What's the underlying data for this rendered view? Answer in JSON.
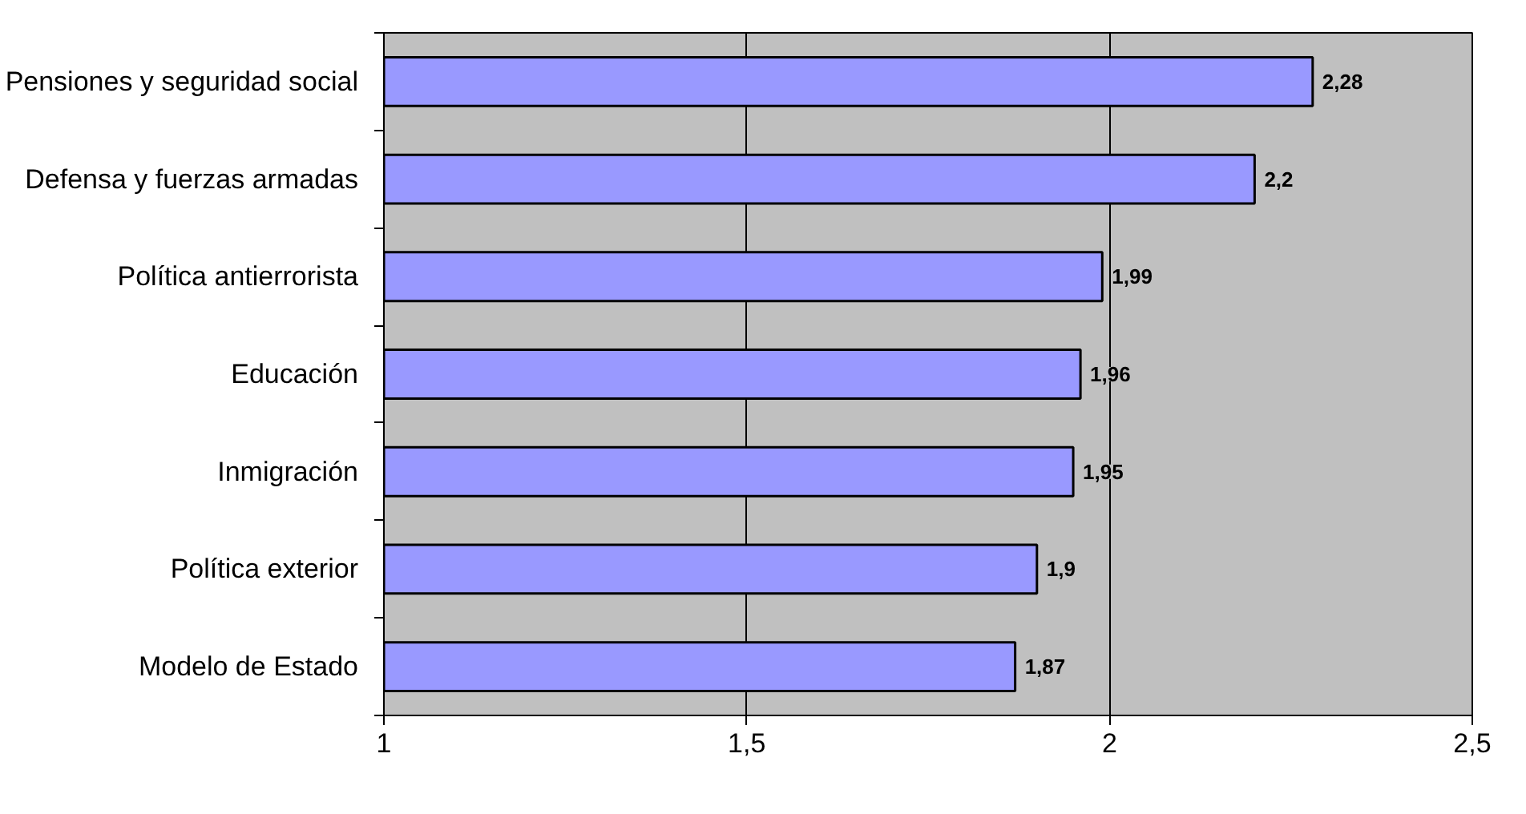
{
  "chart_data": {
    "type": "bar",
    "orientation": "horizontal",
    "categories": [
      "Pensiones y seguridad social",
      "Defensa y fuerzas armadas",
      "Política antierrorista",
      "Educación",
      "Inmigración",
      "Política exterior",
      "Modelo de Estado"
    ],
    "values": [
      2.28,
      2.2,
      1.99,
      1.96,
      1.95,
      1.9,
      1.87
    ],
    "value_labels": [
      "2,28",
      "2,2",
      "1,99",
      "1,96",
      "1,95",
      "1,9",
      "1,87"
    ],
    "color": "#9999ff",
    "xlim": [
      1,
      2.5
    ],
    "xticks": [
      1,
      {
        "value": 1.5,
        "label": "1,5"
      },
      2,
      {
        "value": 2.5,
        "label": "2,5"
      }
    ],
    "grid": "x"
  }
}
